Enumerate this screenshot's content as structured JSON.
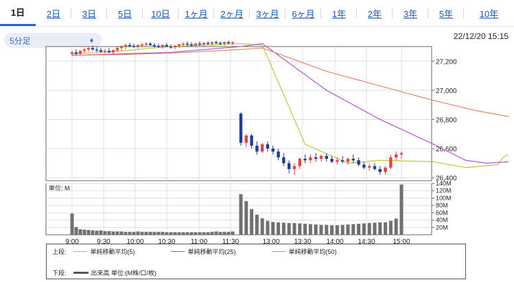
{
  "tabs": [
    {
      "label": "1日",
      "active": true
    },
    {
      "label": "2日"
    },
    {
      "label": "3日"
    },
    {
      "label": "5日"
    },
    {
      "label": "10日"
    },
    {
      "label": "1ヶ月"
    },
    {
      "label": "2ヶ月"
    },
    {
      "label": "3ヶ月"
    },
    {
      "label": "6ヶ月"
    },
    {
      "label": "1年"
    },
    {
      "label": "2年"
    },
    {
      "label": "3年"
    },
    {
      "label": "5年"
    },
    {
      "label": "10年"
    }
  ],
  "interval_select": {
    "value": "5分足",
    "icon": "chevron-updown-icon"
  },
  "timestamp": "22/12/20 15:15",
  "colors": {
    "up": "#e8423e",
    "down": "#1f3c9b",
    "ma5": "#b5c425",
    "ma25": "#a64ad0",
    "ma50": "#e67c63",
    "volume": "#707070",
    "tab_accent": "#2a62c8"
  },
  "chart_data": {
    "type": "candlestick",
    "x_ticks": [
      "9:00",
      "9:30",
      "10:00",
      "10:30",
      "11:00",
      "11:30",
      "13:00",
      "13:30",
      "14:00",
      "14:30",
      "15:00"
    ],
    "price_axis": {
      "ticks": [
        "27,200",
        "27,000",
        "26,800",
        "26,600",
        "26,400"
      ],
      "ylim": [
        26380,
        27300
      ]
    },
    "volume_axis": {
      "label": "単位: M",
      "ticks": [
        "140M",
        "120M",
        "100M",
        "80M",
        "60M",
        "40M",
        "20M"
      ],
      "ylim": [
        0,
        140
      ]
    },
    "morning_ohlc": [
      [
        27250,
        27270,
        27235,
        27260
      ],
      [
        27260,
        27280,
        27240,
        27250
      ],
      [
        27250,
        27275,
        27240,
        27270
      ],
      [
        27270,
        27290,
        27255,
        27280
      ],
      [
        27280,
        27300,
        27265,
        27290
      ],
      [
        27290,
        27305,
        27270,
        27280
      ],
      [
        27280,
        27295,
        27260,
        27275
      ],
      [
        27275,
        27290,
        27255,
        27265
      ],
      [
        27265,
        27285,
        27250,
        27270
      ],
      [
        27270,
        27290,
        27255,
        27260
      ],
      [
        27260,
        27280,
        27245,
        27275
      ],
      [
        27275,
        27300,
        27260,
        27290
      ],
      [
        27290,
        27310,
        27270,
        27300
      ],
      [
        27300,
        27320,
        27280,
        27310
      ],
      [
        27310,
        27325,
        27295,
        27305
      ],
      [
        27305,
        27320,
        27290,
        27300
      ],
      [
        27300,
        27315,
        27285,
        27310
      ],
      [
        27310,
        27325,
        27295,
        27315
      ],
      [
        27315,
        27330,
        27300,
        27320
      ],
      [
        27320,
        27330,
        27305,
        27310
      ],
      [
        27310,
        27325,
        27295,
        27305
      ],
      [
        27305,
        27320,
        27290,
        27300
      ],
      [
        27300,
        27315,
        27285,
        27310
      ],
      [
        27310,
        27325,
        27295,
        27300
      ],
      [
        27300,
        27315,
        27285,
        27295
      ],
      [
        27295,
        27310,
        27280,
        27305
      ],
      [
        27305,
        27320,
        27290,
        27315
      ],
      [
        27315,
        27330,
        27300,
        27320
      ],
      [
        27320,
        27335,
        27305,
        27315
      ],
      [
        27315,
        27330,
        27300,
        27310
      ],
      [
        27310,
        27325,
        27295,
        27320
      ],
      [
        27320,
        27335,
        27305,
        27315
      ],
      [
        27315,
        27330,
        27300,
        27325
      ],
      [
        27325,
        27335,
        27310,
        27320
      ],
      [
        27320,
        27335,
        27305,
        27330
      ],
      [
        27330,
        27340,
        27315,
        27325
      ],
      [
        27325,
        27335,
        27310,
        27320
      ],
      [
        27320,
        27335,
        27305,
        27330
      ],
      [
        27330,
        27340,
        27315,
        27325
      ],
      [
        27325,
        27335,
        27310,
        27330
      ]
    ],
    "afternoon_ohlc": [
      [
        26840,
        26850,
        26620,
        26640
      ],
      [
        26640,
        26700,
        26610,
        26690
      ],
      [
        26690,
        26700,
        26600,
        26620
      ],
      [
        26620,
        26650,
        26560,
        26580
      ],
      [
        26580,
        26640,
        26570,
        26630
      ],
      [
        26630,
        26650,
        26580,
        26600
      ],
      [
        26600,
        26620,
        26560,
        26580
      ],
      [
        26580,
        26600,
        26520,
        26540
      ],
      [
        26540,
        26570,
        26480,
        26500
      ],
      [
        26500,
        26520,
        26430,
        26460
      ],
      [
        26460,
        26500,
        26420,
        26480
      ],
      [
        26480,
        26540,
        26460,
        26530
      ],
      [
        26530,
        26560,
        26500,
        26520
      ],
      [
        26520,
        26560,
        26500,
        26540
      ],
      [
        26540,
        26570,
        26510,
        26530
      ],
      [
        26530,
        26560,
        26510,
        26550
      ],
      [
        26550,
        26570,
        26510,
        26530
      ],
      [
        26530,
        26550,
        26500,
        26510
      ],
      [
        26510,
        26540,
        26490,
        26520
      ],
      [
        26520,
        26550,
        26500,
        26510
      ],
      [
        26510,
        26540,
        26490,
        26530
      ],
      [
        26530,
        26560,
        26500,
        26520
      ],
      [
        26520,
        26540,
        26480,
        26490
      ],
      [
        26490,
        26510,
        26460,
        26470
      ],
      [
        26470,
        26500,
        26450,
        26480
      ],
      [
        26480,
        26500,
        26450,
        26460
      ],
      [
        26460,
        26480,
        26420,
        26440
      ],
      [
        26440,
        26480,
        26420,
        26470
      ],
      [
        26470,
        26560,
        26460,
        26540
      ],
      [
        26540,
        26580,
        26520,
        26560
      ],
      [
        26560,
        26580,
        26530,
        26570
      ]
    ],
    "ma_lines": [
      {
        "name": "単純移動平均(5)",
        "points": [
          [
            0,
            27250
          ],
          [
            12,
            27270
          ],
          [
            24,
            27300
          ],
          [
            40,
            27320
          ],
          [
            44,
            27310
          ],
          [
            52,
            26630
          ],
          [
            60,
            26500
          ],
          [
            66,
            26520
          ],
          [
            76,
            26510
          ],
          [
            82,
            26470
          ],
          [
            88,
            26490
          ],
          [
            89,
            26540
          ],
          [
            90,
            26560
          ]
        ]
      },
      {
        "name": "単純移動平均(25)",
        "points": [
          [
            0,
            27240
          ],
          [
            12,
            27250
          ],
          [
            24,
            27260
          ],
          [
            40,
            27300
          ],
          [
            44,
            27320
          ],
          [
            56,
            27000
          ],
          [
            66,
            26800
          ],
          [
            76,
            26630
          ],
          [
            82,
            26520
          ],
          [
            86,
            26500
          ],
          [
            90,
            26510
          ]
        ]
      },
      {
        "name": "単純移動平均(50)",
        "points": [
          [
            0,
            27240
          ],
          [
            12,
            27245
          ],
          [
            24,
            27255
          ],
          [
            40,
            27280
          ],
          [
            44,
            27290
          ],
          [
            56,
            27130
          ],
          [
            66,
            27030
          ],
          [
            76,
            26930
          ],
          [
            84,
            26860
          ],
          [
            90,
            26820
          ]
        ]
      }
    ],
    "volume_morning": [
      58,
      21,
      15,
      14,
      13,
      12,
      11,
      12,
      10,
      10,
      9,
      9,
      9,
      8,
      8,
      8,
      9,
      8,
      8,
      8,
      8,
      8,
      8,
      7,
      7,
      7,
      7,
      7,
      7,
      7,
      7,
      7,
      7,
      7,
      8,
      9,
      8,
      8,
      8,
      9
    ],
    "volume_afternoon": [
      111,
      92,
      70,
      55,
      45,
      38,
      35,
      34,
      33,
      32,
      32,
      31,
      30,
      29,
      28,
      27,
      27,
      26,
      26,
      27,
      28,
      29,
      30,
      31,
      32,
      33,
      34,
      34,
      38,
      44,
      137
    ],
    "legend": {
      "upper_label": "上段:",
      "lower_label": "下段:",
      "volume_label": "出来高 単位:(M株/口/枚)"
    }
  }
}
